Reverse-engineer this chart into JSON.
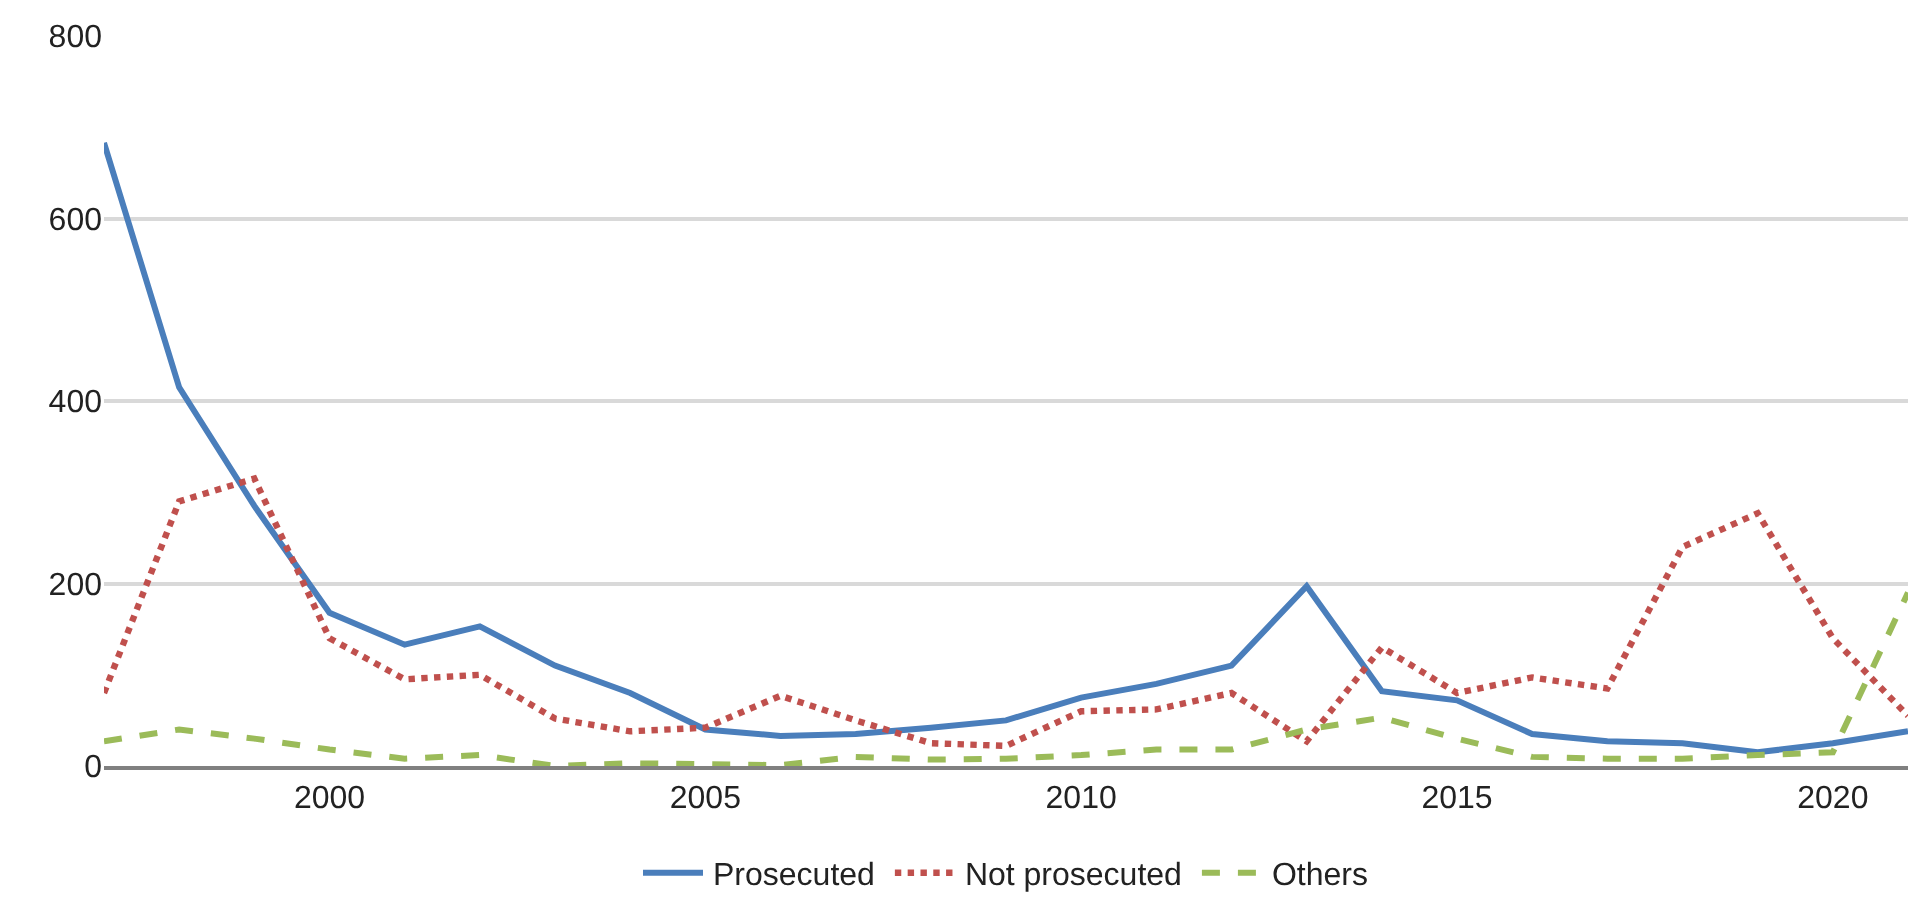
{
  "chart_data": {
    "type": "line",
    "x": [
      1997,
      1998,
      1999,
      2000,
      2001,
      2002,
      2003,
      2004,
      2005,
      2006,
      2007,
      2008,
      2009,
      2010,
      2011,
      2012,
      2013,
      2014,
      2015,
      2016,
      2017,
      2018,
      2019,
      2020,
      2021
    ],
    "series": [
      {
        "name": "Prosecuted",
        "color": "#4a7ebb",
        "line_style": "solid",
        "values": [
          683,
          415,
          285,
          168,
          133,
          153,
          110,
          80,
          40,
          33,
          35,
          42,
          50,
          75,
          90,
          110,
          197,
          82,
          72,
          35,
          27,
          25,
          15,
          25,
          38
        ]
      },
      {
        "name": "Not prosecuted",
        "color": "#c0504d",
        "line_style": "dotted",
        "values": [
          80,
          290,
          315,
          140,
          95,
          100,
          52,
          38,
          42,
          77,
          50,
          25,
          22,
          60,
          62,
          80,
          27,
          130,
          80,
          97,
          85,
          240,
          277,
          140,
          55
        ]
      },
      {
        "name": "Others",
        "color": "#9bbb59",
        "line_style": "dashed",
        "values": [
          27,
          40,
          30,
          18,
          8,
          12,
          0,
          3,
          2,
          1,
          10,
          7,
          8,
          12,
          18,
          18,
          40,
          53,
          30,
          10,
          8,
          8,
          12,
          15,
          190
        ]
      }
    ],
    "xlim": [
      1997,
      2021
    ],
    "xticks": [
      2000,
      2005,
      2010,
      2015,
      2020
    ],
    "ylim": [
      0,
      800
    ],
    "yticks": [
      0,
      200,
      400,
      600,
      800
    ],
    "grid": "y",
    "legend": "bottom",
    "marker": "none"
  }
}
